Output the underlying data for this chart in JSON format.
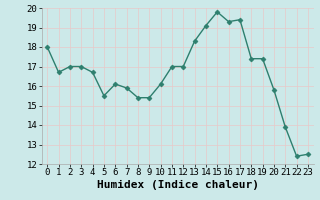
{
  "x": [
    0,
    1,
    2,
    3,
    4,
    5,
    6,
    7,
    8,
    9,
    10,
    11,
    12,
    13,
    14,
    15,
    16,
    17,
    18,
    19,
    20,
    21,
    22,
    23
  ],
  "y": [
    18,
    16.7,
    17,
    17,
    16.7,
    15.5,
    16.1,
    15.9,
    15.4,
    15.4,
    16.1,
    17,
    17,
    18.3,
    19.1,
    19.8,
    19.3,
    19.4,
    17.4,
    17.4,
    15.8,
    13.9,
    12.4,
    12.5
  ],
  "line_color": "#2e7f6e",
  "marker": "D",
  "marker_size": 2.5,
  "linewidth": 1.0,
  "xlabel": "Humidex (Indice chaleur)",
  "ylim": [
    12,
    20
  ],
  "xlim": [
    -0.5,
    23.5
  ],
  "yticks": [
    12,
    13,
    14,
    15,
    16,
    17,
    18,
    19,
    20
  ],
  "xticks": [
    0,
    1,
    2,
    3,
    4,
    5,
    6,
    7,
    8,
    9,
    10,
    11,
    12,
    13,
    14,
    15,
    16,
    17,
    18,
    19,
    20,
    21,
    22,
    23
  ],
  "bg_color": "#cce9e9",
  "grid_color": "#e8c8c8",
  "tick_fontsize": 6.5,
  "xlabel_fontsize": 8
}
